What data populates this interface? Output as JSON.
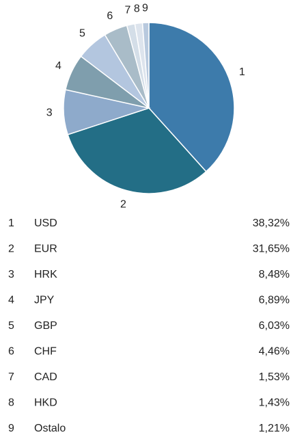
{
  "chart_data": {
    "type": "pie",
    "ids": [
      "1",
      "2",
      "3",
      "4",
      "5",
      "6",
      "7",
      "8",
      "9"
    ],
    "categories": [
      "USD",
      "EUR",
      "HRK",
      "JPY",
      "GBP",
      "CHF",
      "CAD",
      "HKD",
      "Ostalo"
    ],
    "values": [
      38.32,
      31.65,
      8.48,
      6.89,
      6.03,
      4.46,
      1.53,
      1.43,
      1.21
    ],
    "value_labels": [
      "38,32%",
      "31,65%",
      "8,48%",
      "6,89%",
      "6,03%",
      "4,46%",
      "1,53%",
      "1,43%",
      "1,21%"
    ],
    "colors": [
      "#3d7bab",
      "#236e86",
      "#8eaacb",
      "#7f9ead",
      "#b3c6df",
      "#a9bcc8",
      "#d4dee8",
      "#dde4ed",
      "#b8c9de"
    ]
  }
}
